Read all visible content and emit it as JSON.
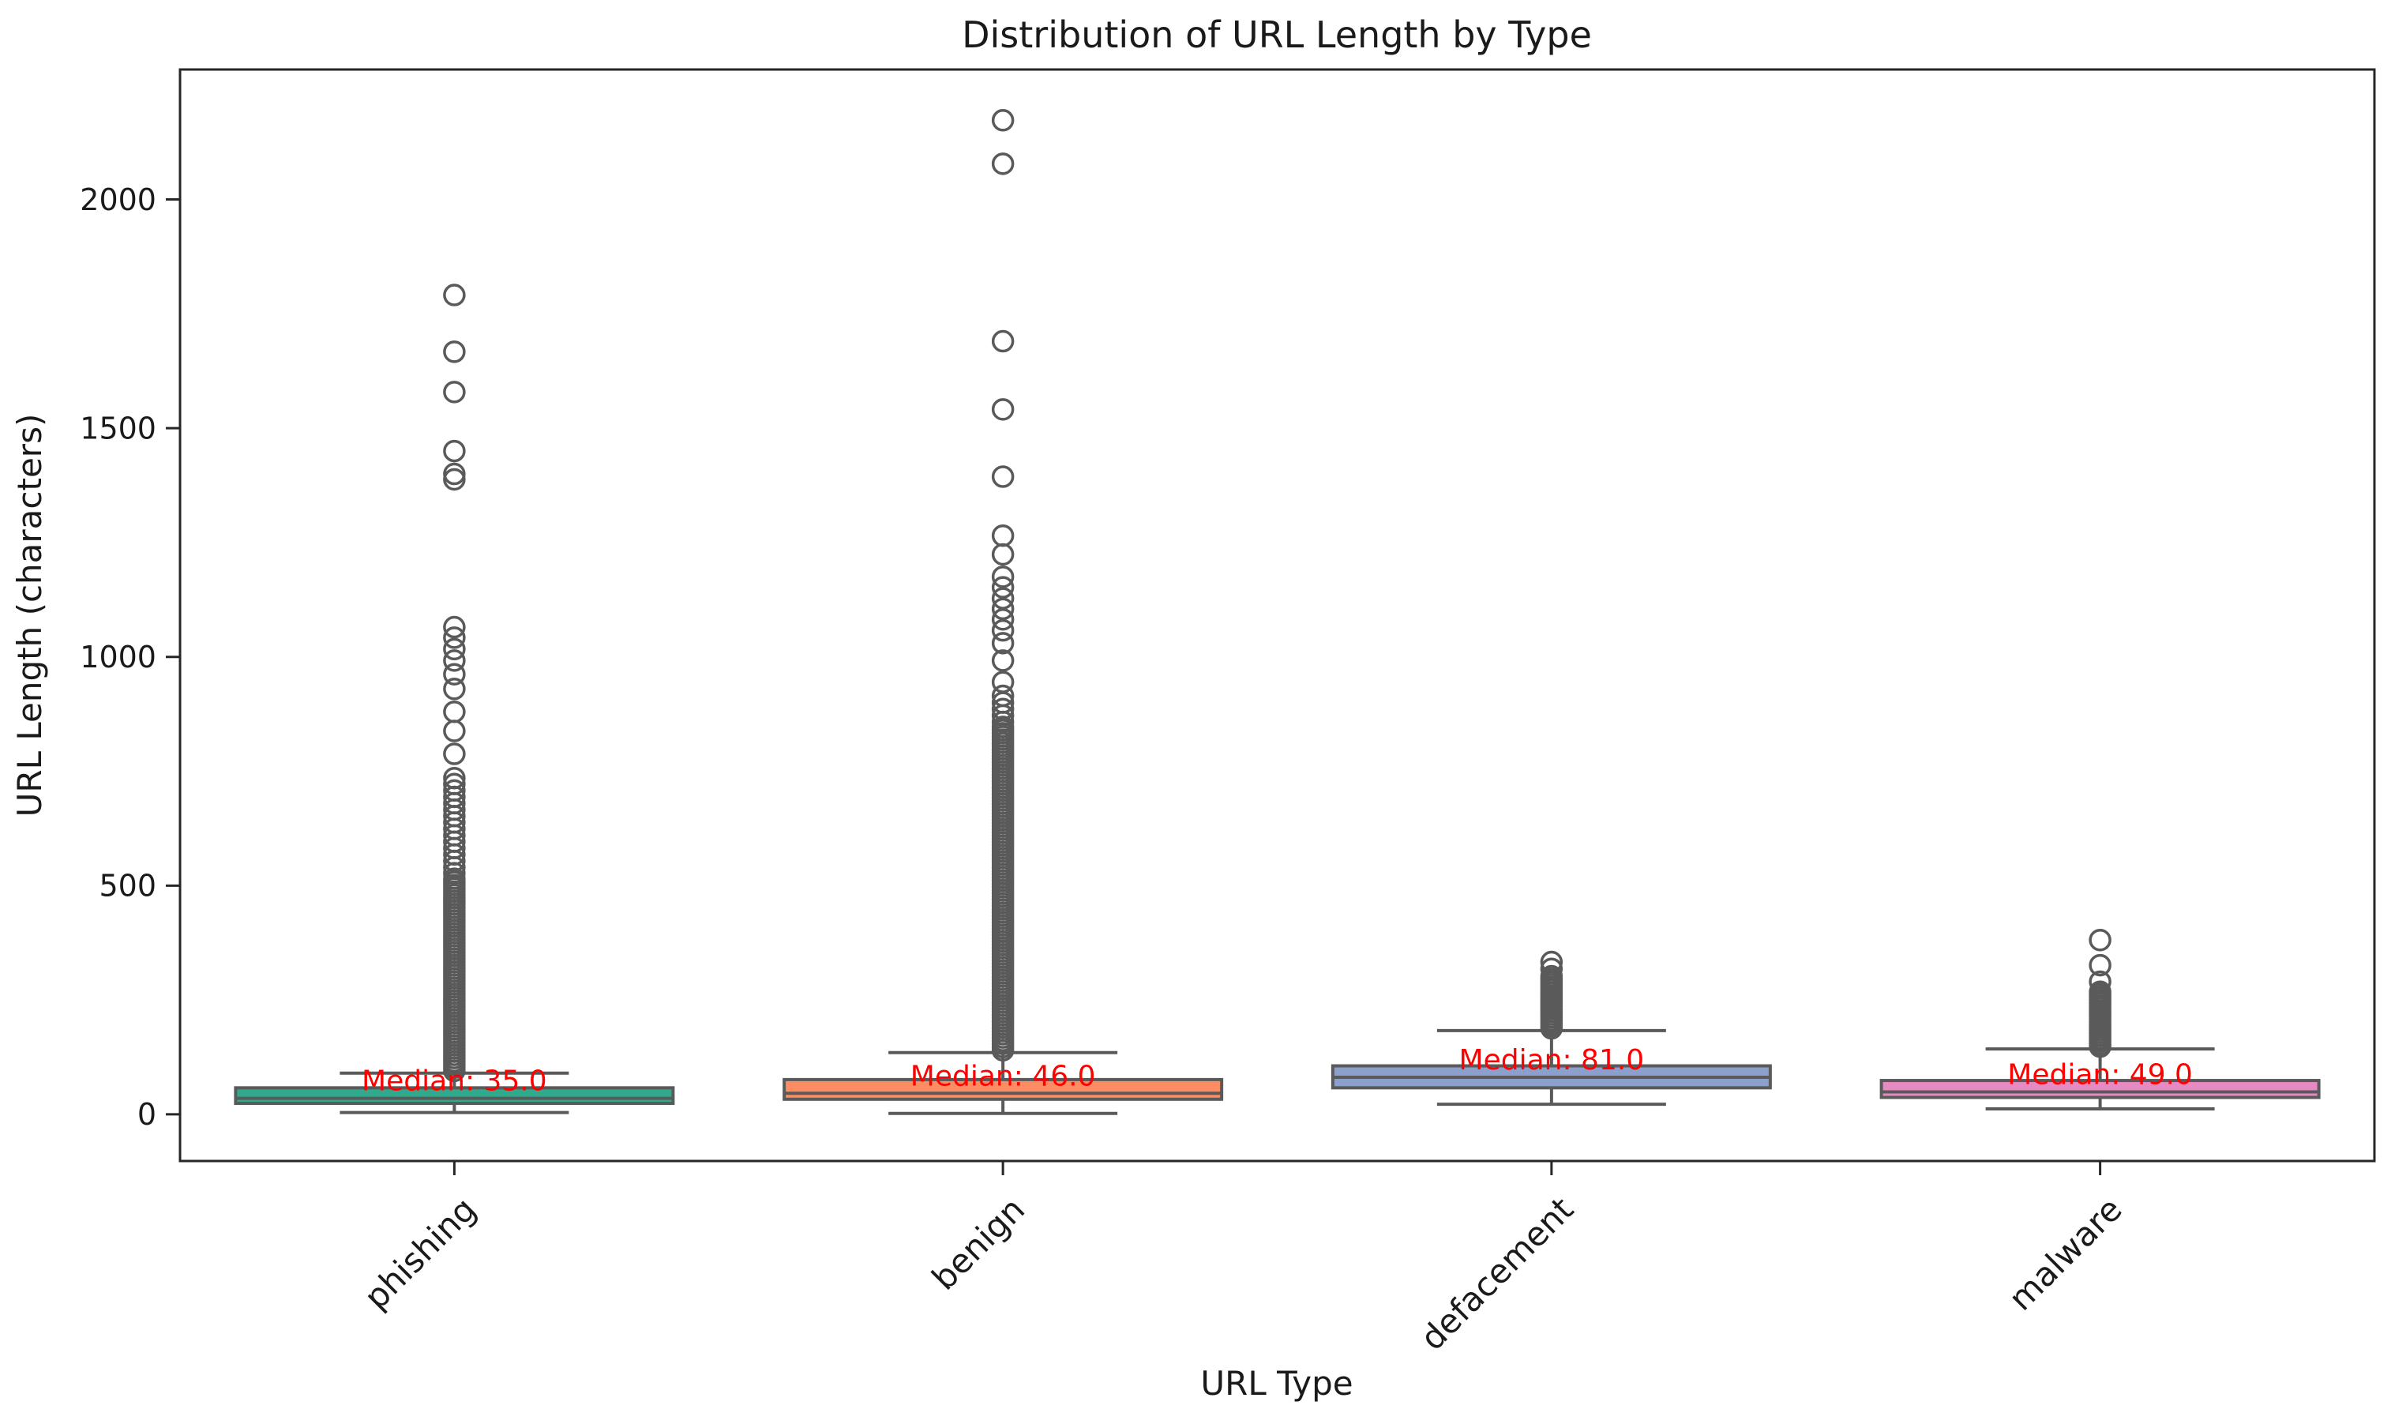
{
  "figure": {
    "background": "#ffffff",
    "spine_color": "#262626",
    "text_color": "#1a1a1a",
    "box_line_color": "#5a5a5a",
    "median_label_color": "#ff0000"
  },
  "chart_data": {
    "type": "boxplot",
    "title": "Distribution of URL Length by Type",
    "xlabel": "URL Type",
    "ylabel": "URL Length (characters)",
    "categories": [
      "phishing",
      "benign",
      "defacement",
      "malware"
    ],
    "ylim": [
      -102,
      2284
    ],
    "yticks": [
      0,
      500,
      1000,
      1500,
      2000
    ],
    "grid": false,
    "legend": "none",
    "groups": [
      {
        "label": "phishing",
        "median_label": "Median: 35.0",
        "fill": "#2faa8c",
        "stats": {
          "whislo": 4,
          "q1": 24,
          "med": 35,
          "q3": 58,
          "whishi": 90
        },
        "outliers": [
          1791,
          1667,
          1579,
          1450,
          1400,
          1388,
          1065,
          1042,
          1017,
          992,
          962,
          930,
          880,
          838,
          788,
          735,
          722,
          708,
          694,
          680,
          666,
          652,
          638,
          624,
          610,
          596,
          582,
          568,
          554,
          540,
          527
        ],
        "outlier_dense_ranges": [
          {
            "from": 95,
            "to": 515,
            "step": 7
          }
        ]
      },
      {
        "label": "benign",
        "median_label": "Median: 46.0",
        "fill": "#fc8d62",
        "stats": {
          "whislo": 2,
          "q1": 33,
          "med": 46,
          "q3": 76,
          "whishi": 135
        },
        "outliers": [
          2173,
          2078,
          1690,
          1541,
          1394,
          1265,
          1224,
          1175,
          1152,
          1128,
          1105,
          1082,
          1058,
          1030,
          992,
          945,
          915,
          900,
          886,
          872,
          858
        ],
        "outlier_dense_ranges": [
          {
            "from": 140,
            "to": 850,
            "step": 7
          }
        ]
      },
      {
        "label": "defacement",
        "median_label": "Median: 81.0",
        "fill": "#8da0cb",
        "stats": {
          "whislo": 22,
          "q1": 58,
          "med": 81,
          "q3": 106,
          "whishi": 183
        },
        "outliers": [
          333,
          318
        ],
        "outlier_dense_ranges": [
          {
            "from": 188,
            "to": 305,
            "step": 6
          }
        ]
      },
      {
        "label": "malware",
        "median_label": "Median: 49.0",
        "fill": "#e78ac3",
        "stats": {
          "whislo": 12,
          "q1": 37,
          "med": 49,
          "q3": 74,
          "whishi": 143
        },
        "outliers": [
          381,
          326,
          290
        ],
        "outlier_dense_ranges": [
          {
            "from": 148,
            "to": 272,
            "step": 6
          }
        ]
      }
    ]
  }
}
